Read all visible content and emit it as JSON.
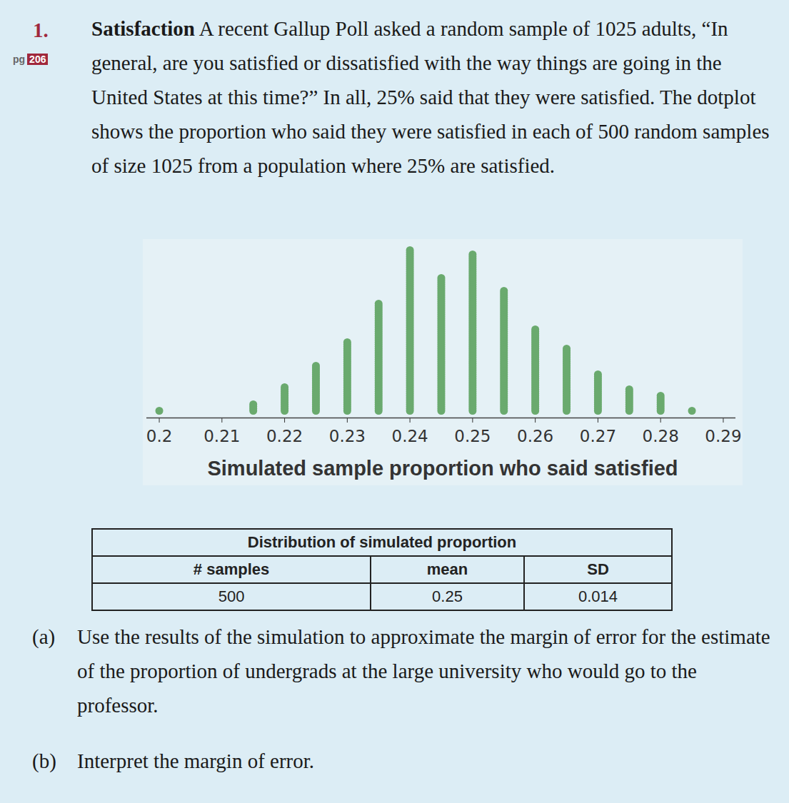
{
  "number": "1.",
  "page_ref": {
    "prefix": "pg",
    "number": "206"
  },
  "title": "Satisfaction",
  "text": "A recent Gallup Poll asked a random sample of 1025 adults, “In general, are you satisfied or dissatisfied with the way things are going in the United States at this time?” In all, 25% said that they were satisfied. The dotplot shows the proportion who said they were satisfied in each of 500 random samples of size 1025 from a population where 25% are satisfied.",
  "chart_data": {
    "type": "dotplot",
    "x_label": "Simulated sample proportion who said satisfied",
    "x": [
      0.2,
      0.215,
      0.22,
      0.225,
      0.23,
      0.235,
      0.24,
      0.245,
      0.25,
      0.255,
      0.26,
      0.265,
      0.27,
      0.275,
      0.28,
      0.285
    ],
    "values": [
      1,
      4,
      12,
      22,
      33,
      51,
      76,
      63,
      74,
      57,
      39,
      30,
      18,
      11,
      8,
      1
    ],
    "color": "#6aaa6e",
    "marker": "circle",
    "xlim": [
      0.198,
      0.292
    ],
    "xticks": [
      0.2,
      0.21,
      0.22,
      0.23,
      0.24,
      0.25,
      0.26,
      0.27,
      0.28,
      0.29
    ],
    "tick_labels": "x"
  },
  "table": {
    "title": "Distribution of simulated proportion",
    "header": [
      "# samples",
      "mean",
      "SD"
    ],
    "rows": [
      [
        500,
        0.25,
        0.014
      ]
    ]
  },
  "questions": [
    {
      "label": "(a)",
      "text": "Use the results of the simulation to approximate the margin of error for the estimate of the proportion of undergrads at the large university who would go to the professor."
    },
    {
      "label": "(b)",
      "text": "Interpret the margin of error."
    }
  ]
}
